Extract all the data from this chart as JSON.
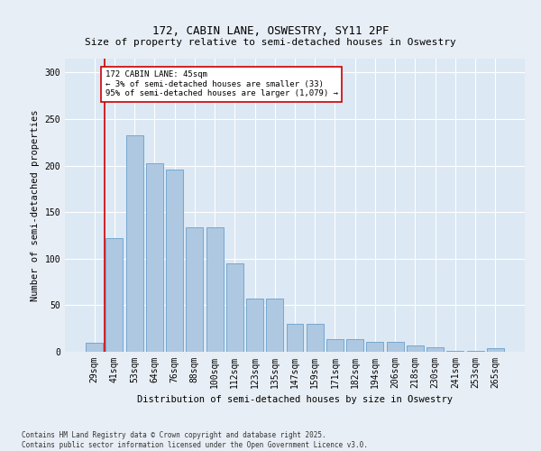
{
  "title": "172, CABIN LANE, OSWESTRY, SY11 2PF",
  "subtitle": "Size of property relative to semi-detached houses in Oswestry",
  "xlabel": "Distribution of semi-detached houses by size in Oswestry",
  "ylabel": "Number of semi-detached properties",
  "categories": [
    "29sqm",
    "41sqm",
    "53sqm",
    "64sqm",
    "76sqm",
    "88sqm",
    "100sqm",
    "112sqm",
    "123sqm",
    "135sqm",
    "147sqm",
    "159sqm",
    "171sqm",
    "182sqm",
    "194sqm",
    "206sqm",
    "218sqm",
    "230sqm",
    "241sqm",
    "253sqm",
    "265sqm"
  ],
  "values": [
    10,
    122,
    233,
    203,
    196,
    134,
    134,
    95,
    57,
    57,
    30,
    30,
    14,
    14,
    11,
    11,
    7,
    5,
    1,
    1,
    4
  ],
  "bar_color": "#adc8e0",
  "bar_edge_color": "#6aa0cc",
  "annotation_text": "172 CABIN LANE: 45sqm\n← 3% of semi-detached houses are smaller (33)\n95% of semi-detached houses are larger (1,079) →",
  "annotation_box_color": "#ffffff",
  "annotation_box_edge": "#cc0000",
  "vline_color": "#cc0000",
  "vline_x_index": 1,
  "ylim": [
    0,
    315
  ],
  "yticks": [
    0,
    50,
    100,
    150,
    200,
    250,
    300
  ],
  "footer_line1": "Contains HM Land Registry data © Crown copyright and database right 2025.",
  "footer_line2": "Contains public sector information licensed under the Open Government Licence v3.0.",
  "bg_color": "#e8eef5",
  "plot_bg_color": "#dce8f4",
  "title_fontsize": 9,
  "subtitle_fontsize": 8,
  "axis_label_fontsize": 7.5,
  "tick_fontsize": 7,
  "annotation_fontsize": 6.5,
  "footer_fontsize": 5.5
}
